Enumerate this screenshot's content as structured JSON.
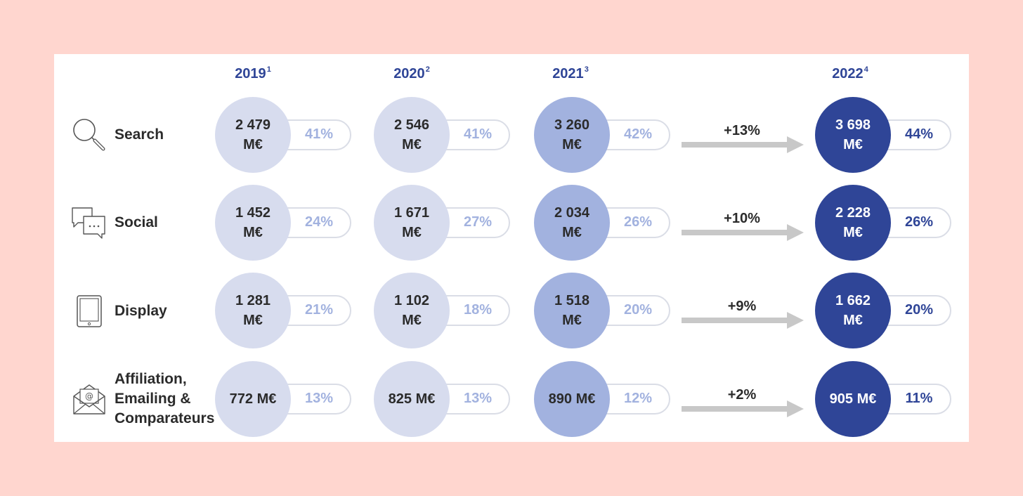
{
  "chart_data": {
    "type": "table",
    "columns": [
      {
        "year": "2019",
        "note": "1"
      },
      {
        "year": "2020",
        "note": "2"
      },
      {
        "year": "2021",
        "note": "3"
      },
      {
        "year": "2022",
        "note": "4"
      }
    ],
    "rows": [
      {
        "label": "Search",
        "icon": "magnifier-icon",
        "values": [
          "2 479 M€",
          "2 546 M€",
          "3 260 M€",
          "3 698 M€"
        ],
        "value_lines": [
          [
            "2 479",
            "M€"
          ],
          [
            "2 546",
            "M€"
          ],
          [
            "3 260",
            "M€"
          ],
          [
            "3 698",
            "M€"
          ]
        ],
        "shares": [
          "41%",
          "41%",
          "42%",
          "44%"
        ],
        "growth": "+13%"
      },
      {
        "label": "Social",
        "icon": "chat-bubbles-icon",
        "values": [
          "1 452 M€",
          "1 671 M€",
          "2 034 M€",
          "2 228 M€"
        ],
        "value_lines": [
          [
            "1 452",
            "M€"
          ],
          [
            "1 671",
            "M€"
          ],
          [
            "2 034",
            "M€"
          ],
          [
            "2 228",
            "M€"
          ]
        ],
        "shares": [
          "24%",
          "27%",
          "26%",
          "26%"
        ],
        "growth": "+10%"
      },
      {
        "label": "Display",
        "icon": "tablet-icon",
        "values": [
          "1 281 M€",
          "1 102 M€",
          "1 518 M€",
          "1 662 M€"
        ],
        "value_lines": [
          [
            "1 281",
            "M€"
          ],
          [
            "1 102",
            "M€"
          ],
          [
            "1 518",
            "M€"
          ],
          [
            "1 662",
            "M€"
          ]
        ],
        "shares": [
          "21%",
          "18%",
          "20%",
          "20%"
        ],
        "growth": "+9%"
      },
      {
        "label_lines": [
          "Affiliation,",
          "Emailing &",
          "Comparateurs"
        ],
        "icon": "email-envelope-icon",
        "values": [
          "772 M€",
          "825 M€",
          "890 M€",
          "905 M€"
        ],
        "value_lines": [
          [
            "772 M€"
          ],
          [
            "825 M€"
          ],
          [
            "890 M€"
          ],
          [
            "905 M€"
          ]
        ],
        "shares": [
          "13%",
          "13%",
          "12%",
          "11%"
        ],
        "growth": "+2%"
      }
    ],
    "colors": {
      "circle_2019": "#d7dcee",
      "circle_2020": "#d7dcee",
      "circle_2021": "#a2b2df",
      "circle_2022": "#2f4597",
      "share_text": "#a2b2df",
      "share_text_2022": "#2f4597",
      "arrow": "#c8c8c8",
      "background": "#ffd6cf"
    }
  }
}
